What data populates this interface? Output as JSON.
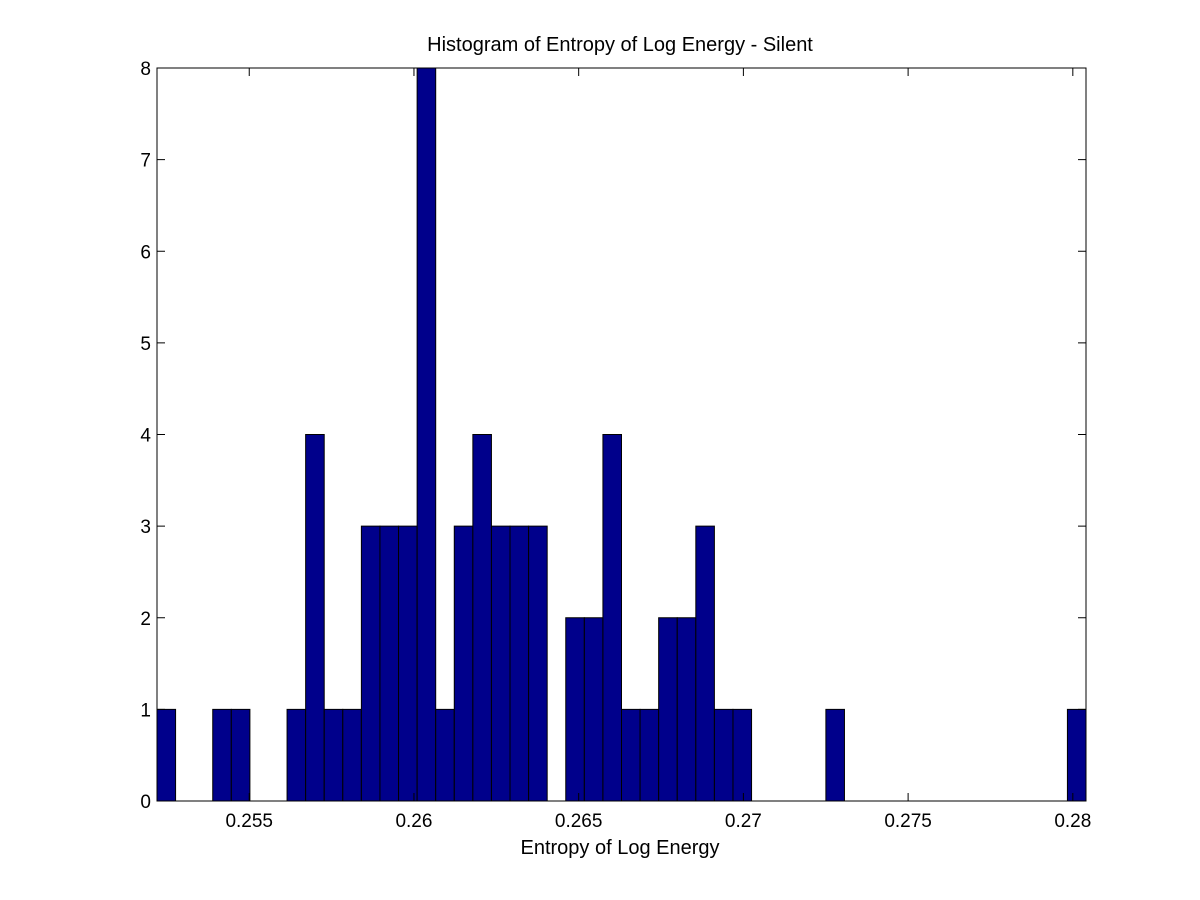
{
  "chart_data": {
    "type": "bar",
    "title": "Histogram of Entropy of Log Energy - Silent",
    "xlabel": "Entropy of Log Energy",
    "ylabel": "",
    "xlim": [
      0.2522,
      0.2804
    ],
    "ylim": [
      0,
      8
    ],
    "xticks": [
      0.255,
      0.26,
      0.265,
      0.27,
      0.275,
      0.28
    ],
    "xtick_labels": [
      "0.255",
      "0.26",
      "0.265",
      "0.27",
      "0.275",
      "0.28"
    ],
    "yticks": [
      0,
      1,
      2,
      3,
      4,
      5,
      6,
      7,
      8
    ],
    "ytick_labels": [
      "0",
      "1",
      "2",
      "3",
      "4",
      "5",
      "6",
      "7",
      "8"
    ],
    "bin_start": 0.2522,
    "bin_width": 0.000564,
    "counts": [
      1,
      0,
      0,
      1,
      1,
      0,
      0,
      1,
      4,
      1,
      1,
      3,
      3,
      3,
      8,
      1,
      3,
      4,
      3,
      3,
      3,
      0,
      2,
      2,
      4,
      1,
      1,
      2,
      2,
      3,
      1,
      1,
      0,
      0,
      0,
      0,
      1,
      0,
      0,
      0,
      0,
      0,
      0,
      0,
      0,
      0,
      0,
      0,
      0,
      1
    ],
    "grid": false,
    "legend": "none",
    "bar_color": "#00008b",
    "edge_color": "#000000"
  }
}
